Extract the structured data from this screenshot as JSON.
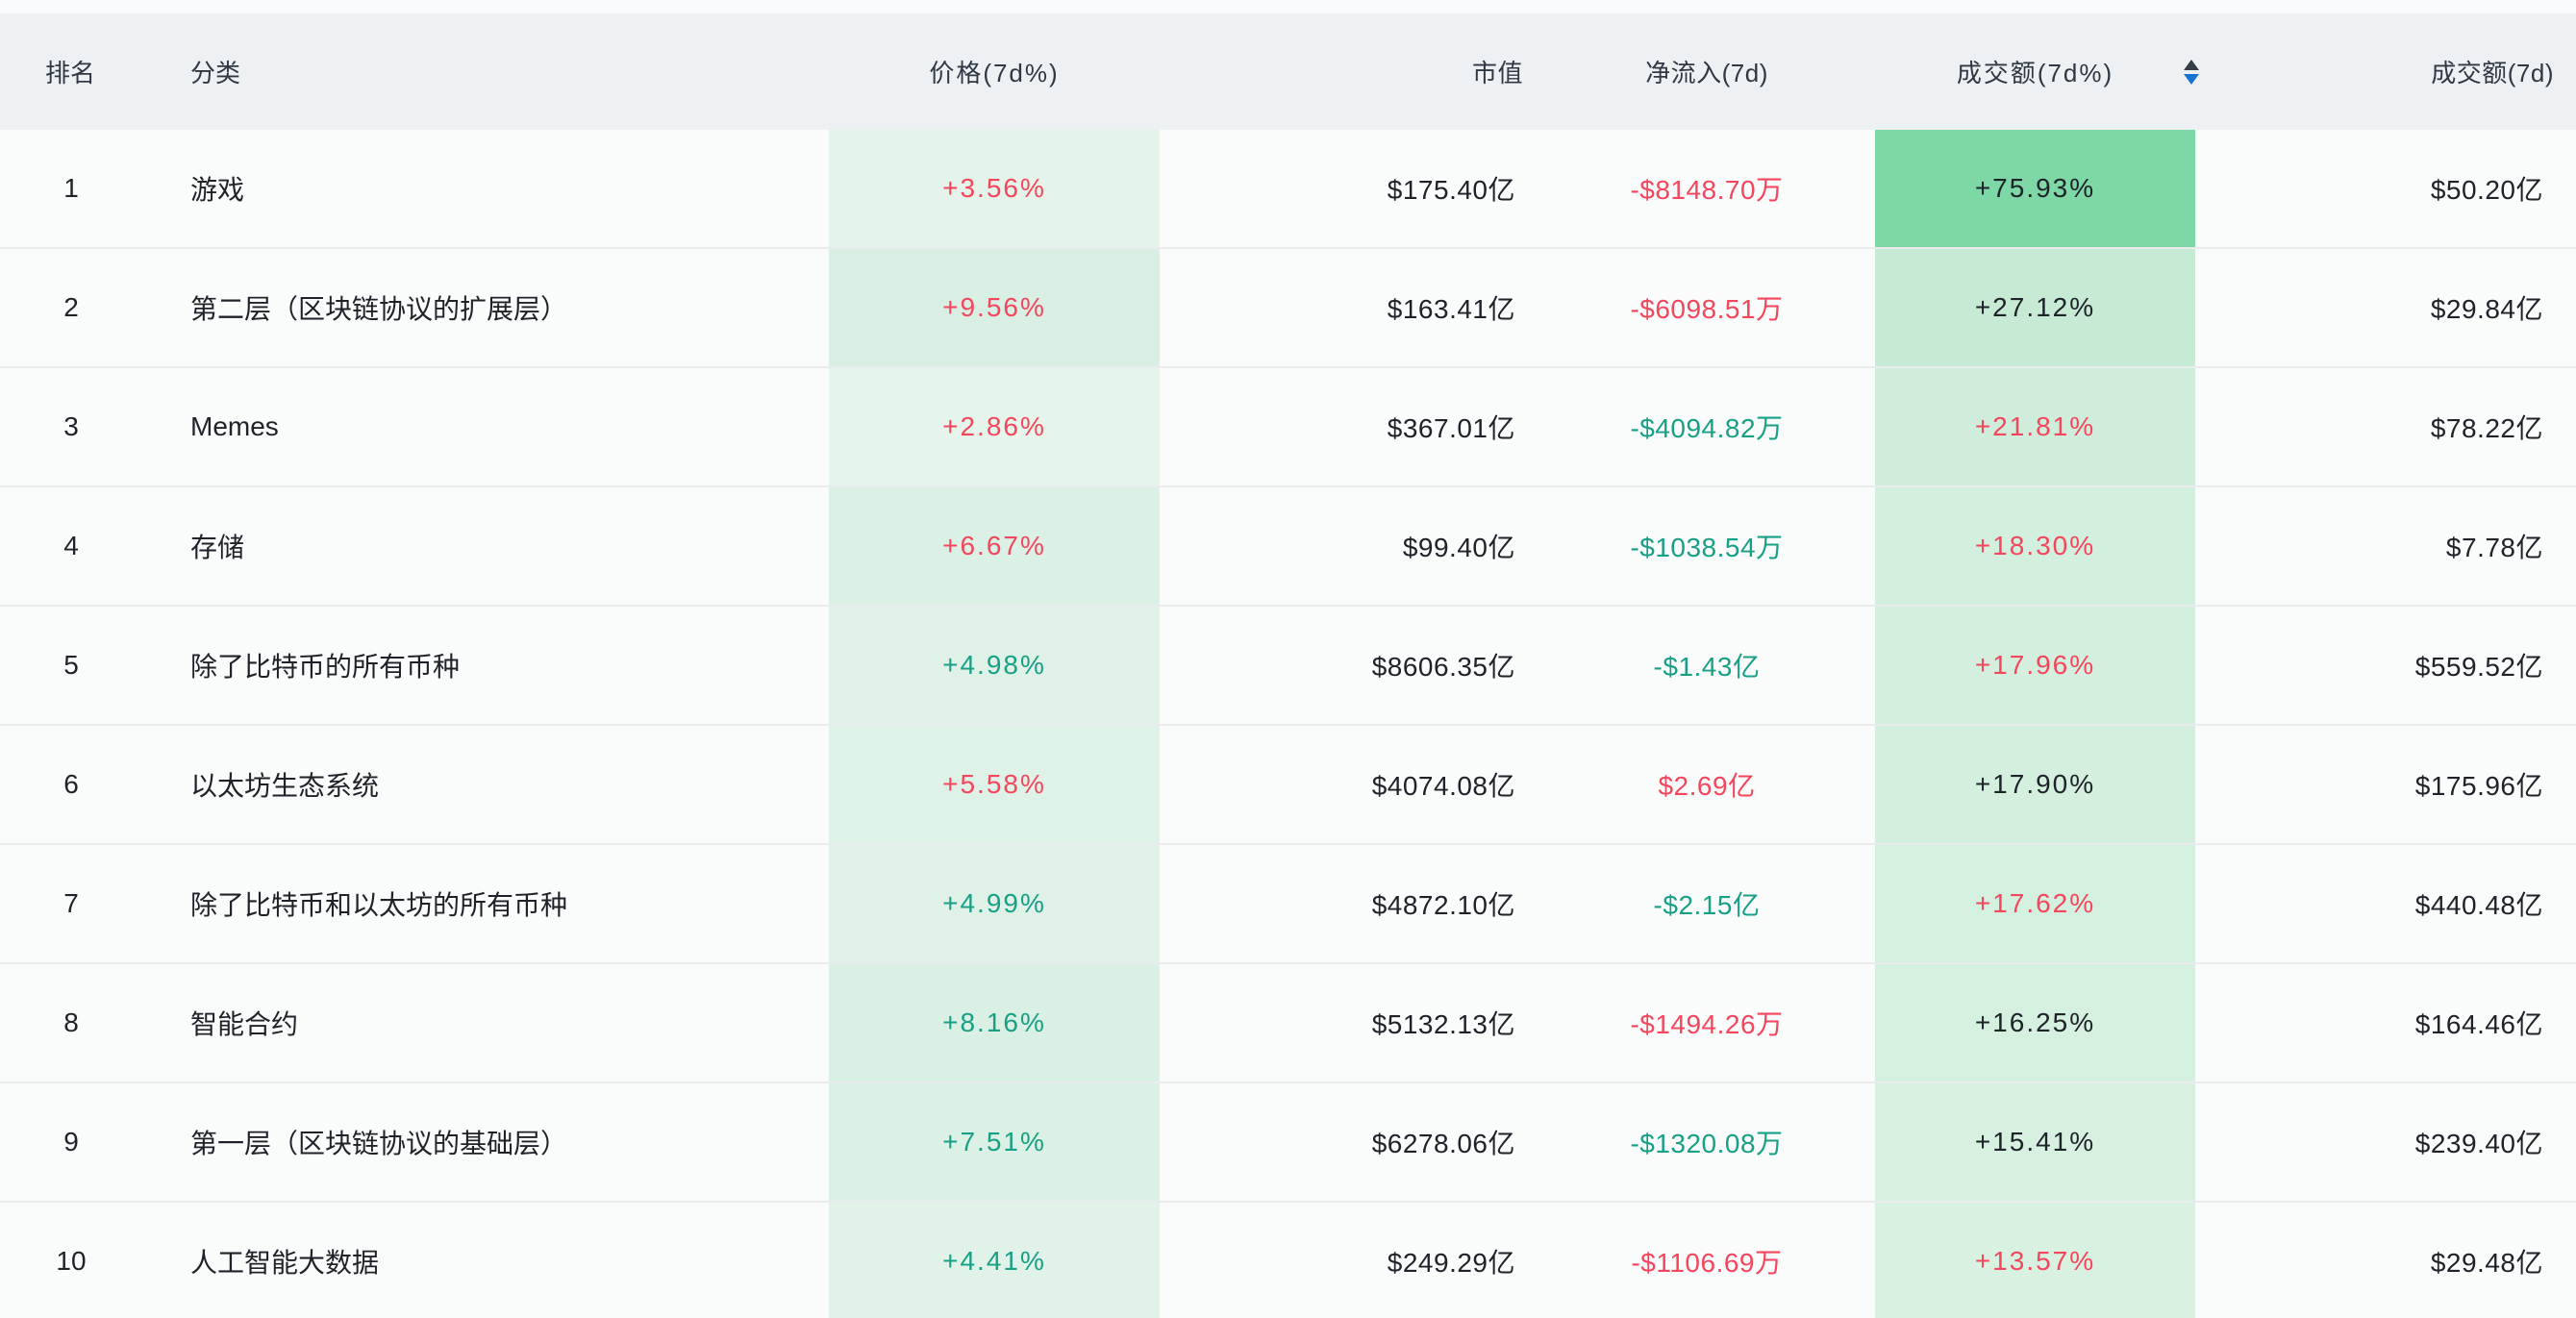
{
  "theme": {
    "page_background": "#F8F9FA",
    "header_background": "#EDF1F4",
    "header_text": "#2F3843",
    "row_background": "#FAFBFB",
    "row_separator": "#E9EBED",
    "thick_separator": "#DEE1E4",
    "text_dark": "#1E2329",
    "up_red": "#F4465C",
    "down_teal": "#18A086",
    "sort_arrow_inactive": "#353D47",
    "sort_arrow_active_blue": "#1673D2",
    "price_heat_column_base": "#E3F4EA",
    "volume_pct_heat_strong": "#7DD8A5"
  },
  "header": {
    "rank": "排名",
    "category": "分类",
    "price": "价格(7d%)",
    "market_cap": "市值",
    "net_inflow": "净流入(7d)",
    "volume_pct": "成交额(7d%)",
    "volume": "成交额(7d)",
    "sort_icon": "sort-up-down"
  },
  "rows": [
    {
      "rank": "1",
      "category": "游戏",
      "price_change": "+3.56%",
      "price_color": "#F4465C",
      "price_bg": "#E4F4EA",
      "market_cap": "$175.40亿",
      "net_inflow": "-$8148.70万",
      "net_inflow_color": "#F4465C",
      "volume_pct": "+75.93%",
      "volume_pct_color": "#1E2329",
      "volume_pct_bg": "#7DD8A5",
      "volume": "$50.20亿"
    },
    {
      "rank": "2",
      "category": "第二层（区块链协议的扩展层）",
      "price_change": "+9.56%",
      "price_color": "#F4465C",
      "price_bg": "#D9EFE3",
      "market_cap": "$163.41亿",
      "net_inflow": "-$6098.51万",
      "net_inflow_color": "#F4465C",
      "volume_pct": "+27.12%",
      "volume_pct_color": "#1E2329",
      "volume_pct_bg": "#C6EAD4",
      "volume": "$29.84亿"
    },
    {
      "rank": "3",
      "category": "Memes",
      "price_change": "+2.86%",
      "price_color": "#F4465C",
      "price_bg": "#E6F5EC",
      "market_cap": "$367.01亿",
      "net_inflow": "-$4094.82万",
      "net_inflow_color": "#18A086",
      "volume_pct": "+21.81%",
      "volume_pct_color": "#F4465C",
      "volume_pct_bg": "#CFEDDA",
      "volume": "$78.22亿"
    },
    {
      "rank": "4",
      "category": "存储",
      "price_change": "+6.67%",
      "price_color": "#F4465C",
      "price_bg": "#DCF1E5",
      "market_cap": "$99.40亿",
      "net_inflow": "-$1038.54万",
      "net_inflow_color": "#18A086",
      "volume_pct": "+18.30%",
      "volume_pct_color": "#F4465C",
      "volume_pct_bg": "#D3EFDD",
      "volume": "$7.78亿"
    },
    {
      "rank": "5",
      "category": "除了比特币的所有币种",
      "price_change": "+4.98%",
      "price_color": "#18A086",
      "price_bg": "#E0F2E8",
      "market_cap": "$8606.35亿",
      "net_inflow": "-$1.43亿",
      "net_inflow_color": "#18A086",
      "volume_pct": "+17.96%",
      "volume_pct_color": "#F4465C",
      "volume_pct_bg": "#D4EFDE",
      "volume": "$559.52亿"
    },
    {
      "rank": "6",
      "category": "以太坊生态系统",
      "price_change": "+5.58%",
      "price_color": "#F4465C",
      "price_bg": "#DFF2E7",
      "market_cap": "$4074.08亿",
      "net_inflow": "$2.69亿",
      "net_inflow_color": "#F4465C",
      "volume_pct": "+17.90%",
      "volume_pct_color": "#1E2329",
      "volume_pct_bg": "#D4EFDE",
      "volume": "$175.96亿"
    },
    {
      "rank": "7",
      "category": "除了比特币和以太坊的所有币种",
      "price_change": "+4.99%",
      "price_color": "#18A086",
      "price_bg": "#E0F2E8",
      "market_cap": "$4872.10亿",
      "net_inflow": "-$2.15亿",
      "net_inflow_color": "#18A086",
      "volume_pct": "+17.62%",
      "volume_pct_color": "#F4465C",
      "volume_pct_bg": "#D4F0DE",
      "volume": "$440.48亿"
    },
    {
      "rank": "8",
      "category": "智能合约",
      "price_change": "+8.16%",
      "price_color": "#18A086",
      "price_bg": "#DBF0E4",
      "market_cap": "$5132.13亿",
      "net_inflow": "-$1494.26万",
      "net_inflow_color": "#F4465C",
      "volume_pct": "+16.25%",
      "volume_pct_color": "#1E2329",
      "volume_pct_bg": "#D6F0DF",
      "volume": "$164.46亿"
    },
    {
      "rank": "9",
      "category": "第一层（区块链协议的基础层）",
      "price_change": "+7.51%",
      "price_color": "#18A086",
      "price_bg": "#DCF1E5",
      "market_cap": "$6278.06亿",
      "net_inflow": "-$1320.08万",
      "net_inflow_color": "#18A086",
      "volume_pct": "+15.41%",
      "volume_pct_color": "#1E2329",
      "volume_pct_bg": "#D7F0E0",
      "volume": "$239.40亿"
    },
    {
      "rank": "10",
      "category": "人工智能大数据",
      "price_change": "+4.41%",
      "price_color": "#18A086",
      "price_bg": "#E1F3E9",
      "market_cap": "$249.29亿",
      "net_inflow": "-$1106.69万",
      "net_inflow_color": "#F4465C",
      "volume_pct": "+13.57%",
      "volume_pct_color": "#F4465C",
      "volume_pct_bg": "#D9F1E1",
      "volume": "$29.48亿"
    }
  ],
  "partial_row": {
    "price_bg": "#E0F2E8",
    "volume_pct_bg": "#D8F1E1"
  }
}
